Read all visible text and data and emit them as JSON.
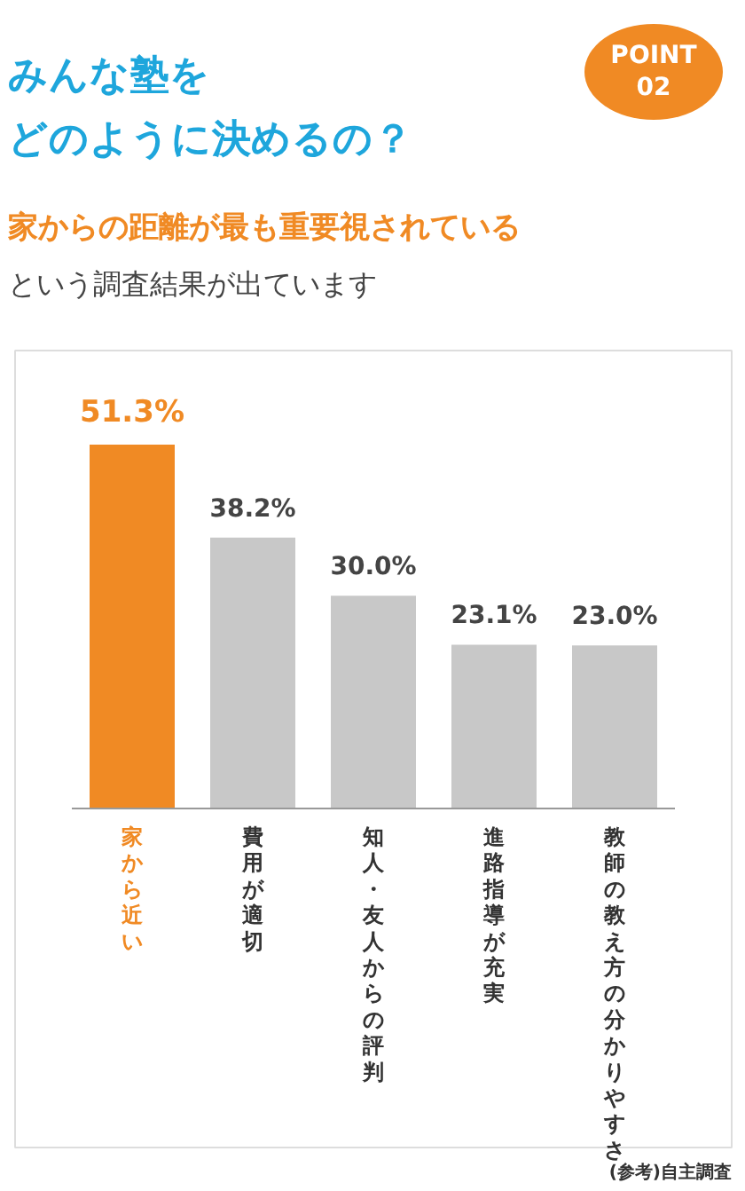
{
  "chart_data": {
    "type": "bar",
    "title": "みんな塾をどのように決めるの？",
    "subtitle": "家からの距離が最も重要視されている",
    "annotations": [
      "POINT\n02",
      "という調査結果が出ています",
      "(参考)自主調査"
    ],
    "categories": [
      "家から近い",
      "費用が適切",
      "知人・友人からの評判",
      "進路指導が充実",
      "教師の教え方の分かりやすさ"
    ],
    "values": [
      51.3,
      38.2,
      30.0,
      23.1,
      23.0
    ],
    "value_labels": [
      "51.3%",
      "38.2%",
      "30.0%",
      "23.1%",
      "23.0%"
    ],
    "colors": [
      "#f08a24",
      "#c8c8c8",
      "#c8c8c8",
      "#c8c8c8",
      "#c8c8c8"
    ],
    "grid": false
  }
}
